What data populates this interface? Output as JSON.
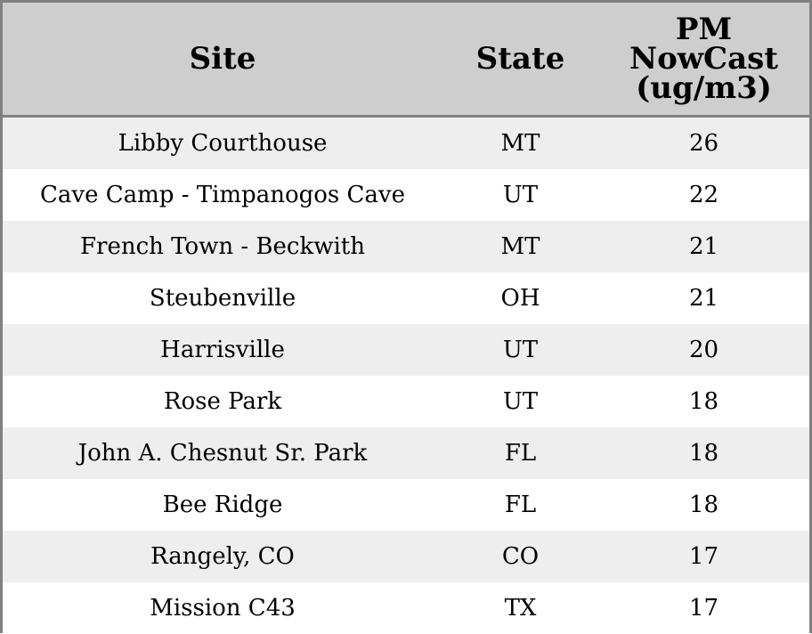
{
  "chart_data": {
    "type": "table",
    "columns": [
      "Site",
      "State",
      "PM NowCast (ug/m3)"
    ],
    "header_lines": {
      "site": [
        "Site"
      ],
      "state": [
        "State"
      ],
      "pm": [
        "PM",
        "NowCast",
        "(ug/m3)"
      ]
    },
    "rows": [
      {
        "site": "Libby Courthouse",
        "state": "MT",
        "pm": 26
      },
      {
        "site": "Cave Camp - Timpanogos Cave",
        "state": "UT",
        "pm": 22
      },
      {
        "site": "French Town - Beckwith",
        "state": "MT",
        "pm": 21
      },
      {
        "site": "Steubenville",
        "state": "OH",
        "pm": 21
      },
      {
        "site": "Harrisville",
        "state": "UT",
        "pm": 20
      },
      {
        "site": "Rose Park",
        "state": "UT",
        "pm": 18
      },
      {
        "site": "John A. Chesnut Sr. Park",
        "state": "FL",
        "pm": 18
      },
      {
        "site": "Bee Ridge",
        "state": "FL",
        "pm": 18
      },
      {
        "site": "Rangely, CO",
        "state": "CO",
        "pm": 17
      },
      {
        "site": "Mission C43",
        "state": "TX",
        "pm": 17
      }
    ]
  },
  "colors": {
    "header_bg": "#cecece",
    "row_odd_bg": "#eeeeee",
    "row_even_bg": "#ffffff",
    "border": "#808080"
  }
}
